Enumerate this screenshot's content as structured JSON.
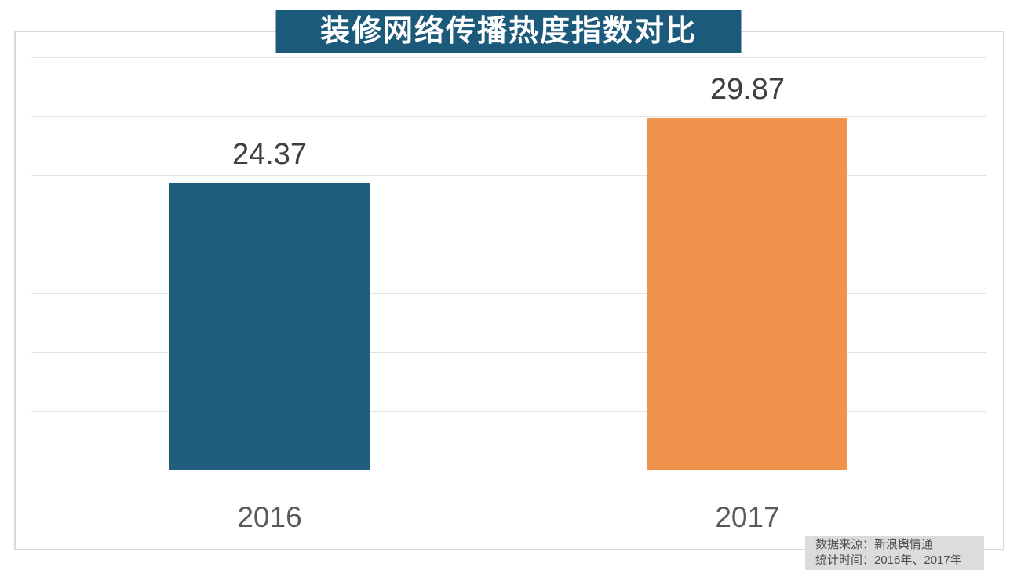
{
  "chart_data": {
    "type": "bar",
    "title": "装修网络传播热度指数对比",
    "categories": [
      "2016",
      "2017"
    ],
    "values": [
      24.37,
      29.87
    ],
    "value_labels": [
      "24.37",
      "29.87"
    ],
    "bar_colors": [
      "#1F5C7E",
      "#F0914C"
    ],
    "xlabel": "",
    "ylabel": "",
    "ylim": [
      0,
      35
    ],
    "grid_step": 5,
    "grid": true,
    "legend": "none",
    "y_tick_labels_visible": false
  },
  "title": {
    "text": "装修网络传播热度指数对比",
    "background": "#1C5A7B",
    "text_color": "#FFFFFF"
  },
  "footer": {
    "source_line": "数据来源：新浪舆情通",
    "period_line": "统计时间：2016年、2017年",
    "background": "#DCDCDC"
  },
  "colors": {
    "border": "#D9D9D9",
    "gridline": "#E2E2E2",
    "value_label": "#3F3F3F",
    "axis_label": "#595959"
  }
}
